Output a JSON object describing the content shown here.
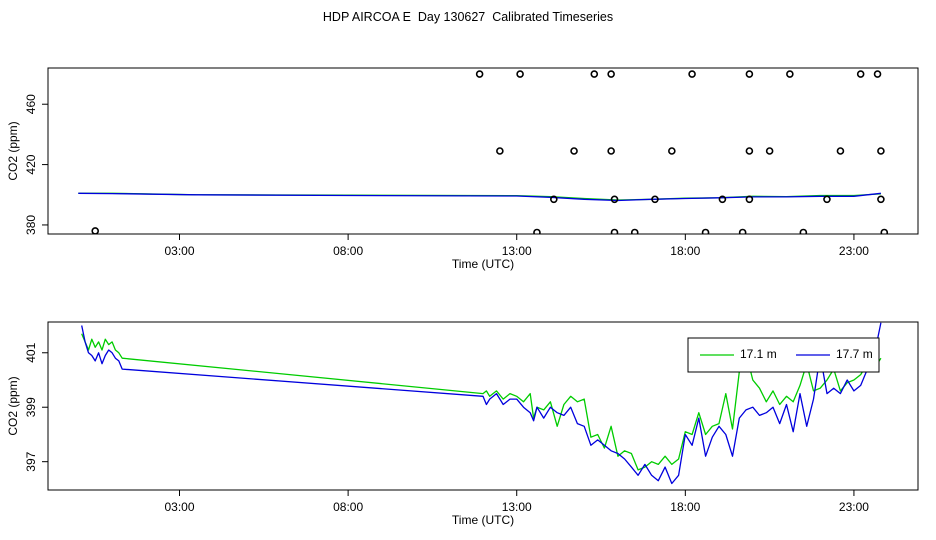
{
  "title": "HDP AIRCOA E  Day 130627  Calibrated Timeseries",
  "colors": {
    "green": "#00cc00",
    "blue": "#0000dd",
    "axis": "#000000"
  },
  "chart_data": [
    {
      "type": "line",
      "xlabel": "Time (UTC)",
      "ylabel": "CO2 (ppm)",
      "xticks": [
        3,
        8,
        13,
        18,
        23
      ],
      "xtick_labels": [
        "03:00",
        "08:00",
        "13:00",
        "18:00",
        "23:00"
      ],
      "yticks": [
        380,
        420,
        460
      ],
      "xlim": [
        -0.9,
        24.9
      ],
      "ylim": [
        374,
        484
      ],
      "grid": false,
      "series": [
        {
          "color": "#00cc00",
          "x": [
            0,
            1,
            3.5,
            8,
            13,
            14,
            15,
            16,
            17,
            18,
            19,
            20,
            21,
            22,
            23,
            23.8
          ],
          "y": [
            401,
            401,
            400,
            399.8,
            399.4,
            398.7,
            397.5,
            396.5,
            397,
            397.7,
            398,
            399,
            398.8,
            399.5,
            399.5,
            400.6
          ]
        },
        {
          "color": "#0000dd",
          "x": [
            0,
            1,
            3.5,
            8,
            13,
            14,
            15,
            16,
            17,
            18,
            19,
            20,
            21,
            22,
            23,
            23.8
          ],
          "y": [
            401,
            400.8,
            400,
            399.5,
            399.2,
            398.3,
            397,
            396.2,
            397,
            397.5,
            398,
            398.6,
            398.6,
            399,
            399,
            401
          ]
        }
      ],
      "points": {
        "x": [
          0.5,
          11.9,
          13.1,
          15.3,
          15.8,
          18.2,
          19.9,
          21.1,
          23.2,
          23.7,
          12.5,
          14.7,
          15.8,
          17.6,
          19.9,
          20.5,
          22.6,
          23.8,
          14.1,
          15.9,
          17.1,
          19.1,
          19.9,
          22.2,
          23.8,
          13.6,
          15.9,
          16.5,
          18.6,
          19.7,
          21.5,
          23.9
        ],
        "y": [
          376,
          480,
          480,
          480,
          480,
          480,
          480,
          480,
          480,
          480,
          429,
          429,
          429,
          429,
          429,
          429,
          429,
          429,
          397,
          397,
          397,
          397,
          397,
          397,
          397,
          375,
          375,
          375,
          375,
          375,
          375,
          375
        ]
      }
    },
    {
      "type": "line",
      "xlabel": "Time (UTC)",
      "ylabel": "CO2 (ppm)",
      "xticks": [
        3,
        8,
        13,
        18,
        23
      ],
      "xtick_labels": [
        "03:00",
        "08:00",
        "13:00",
        "18:00",
        "23:00"
      ],
      "yticks": [
        397,
        399,
        401
      ],
      "ylim": [
        395.96,
        402.13
      ],
      "grid": false,
      "legend": {
        "position": "top-right"
      },
      "series": [
        {
          "name": "17.1 m",
          "color": "#00cc00",
          "x": [
            0.1,
            0.2,
            0.3,
            0.4,
            0.5,
            0.6,
            0.7,
            0.8,
            0.9,
            1,
            1.1,
            1.2,
            1.3,
            12.0,
            12.1,
            12.2,
            12.4,
            12.6,
            12.8,
            13.0,
            13.2,
            13.4,
            13.5,
            13.6,
            13.8,
            14.0,
            14.2,
            14.4,
            14.6,
            14.8,
            15.0,
            15.2,
            15.4,
            15.6,
            15.8,
            16.0,
            16.2,
            16.4,
            16.6,
            16.8,
            17.0,
            17.2,
            17.4,
            17.6,
            17.8,
            18.0,
            18.2,
            18.4,
            18.6,
            18.8,
            19.0,
            19.2,
            19.4,
            19.6,
            19.8,
            20.0,
            20.2,
            20.4,
            20.6,
            20.8,
            21.0,
            21.2,
            21.4,
            21.6,
            21.8,
            22.0,
            22.2,
            22.4,
            22.6,
            22.8,
            23.0,
            23.2,
            23.4,
            23.6,
            23.8
          ],
          "y": [
            401.7,
            401.4,
            401.1,
            401.5,
            401.2,
            401.4,
            401.1,
            401.5,
            401.3,
            401.4,
            401.1,
            401.0,
            400.8,
            399.5,
            399.6,
            399.4,
            399.6,
            399.3,
            399.5,
            399.4,
            399.2,
            399.5,
            398.6,
            399.0,
            398.9,
            399.2,
            398.3,
            399.1,
            399.4,
            399.2,
            399.3,
            397.9,
            398.0,
            397.5,
            398.3,
            397.2,
            397.4,
            397.3,
            396.7,
            396.8,
            397.0,
            396.9,
            397.2,
            396.9,
            397.1,
            398.1,
            398.0,
            398.8,
            398.0,
            398.3,
            398.4,
            399.5,
            398.2,
            400.3,
            401.0,
            400.0,
            399.7,
            399.2,
            399.6,
            399.1,
            399.4,
            399.2,
            399.8,
            400.6,
            399.6,
            399.7,
            400.0,
            400.4,
            399.6,
            399.9,
            400.0,
            400.2,
            400.6,
            400.4,
            400.8
          ]
        },
        {
          "name": "17.7 m",
          "color": "#0000dd",
          "x": [
            0.1,
            0.2,
            0.3,
            0.4,
            0.5,
            0.6,
            0.7,
            0.8,
            0.9,
            1,
            1.1,
            1.2,
            1.3,
            12.0,
            12.1,
            12.2,
            12.4,
            12.6,
            12.8,
            13.0,
            13.2,
            13.4,
            13.5,
            13.6,
            13.8,
            14.0,
            14.2,
            14.4,
            14.6,
            14.8,
            15.0,
            15.2,
            15.4,
            15.6,
            15.8,
            16.0,
            16.2,
            16.4,
            16.6,
            16.8,
            17.0,
            17.2,
            17.4,
            17.6,
            17.8,
            18.0,
            18.2,
            18.4,
            18.6,
            18.8,
            19.0,
            19.2,
            19.4,
            19.6,
            19.8,
            20.0,
            20.2,
            20.4,
            20.6,
            20.8,
            21.0,
            21.2,
            21.4,
            21.6,
            21.8,
            22.0,
            22.2,
            22.4,
            22.6,
            22.8,
            23.0,
            23.2,
            23.4,
            23.6,
            23.8
          ],
          "y": [
            402.0,
            401.4,
            401.0,
            400.9,
            400.7,
            401.0,
            400.6,
            400.9,
            401.1,
            401.0,
            400.8,
            400.7,
            400.4,
            399.4,
            399.1,
            399.3,
            399.5,
            399.1,
            399.3,
            399.3,
            399.0,
            398.8,
            398.5,
            399.0,
            398.6,
            399.0,
            398.8,
            398.7,
            399.0,
            398.4,
            398.3,
            397.6,
            397.8,
            397.6,
            397.4,
            397.3,
            397.1,
            396.8,
            396.5,
            396.9,
            396.5,
            396.3,
            396.8,
            396.2,
            396.5,
            398.0,
            397.6,
            398.6,
            397.2,
            397.9,
            398.3,
            398.0,
            397.2,
            398.6,
            398.9,
            399.0,
            398.7,
            398.8,
            399.0,
            398.4,
            399.1,
            398.1,
            399.5,
            398.3,
            399.3,
            400.9,
            399.5,
            399.7,
            399.5,
            400.0,
            399.6,
            399.8,
            400.4,
            400.9,
            402.1
          ]
        }
      ]
    }
  ]
}
